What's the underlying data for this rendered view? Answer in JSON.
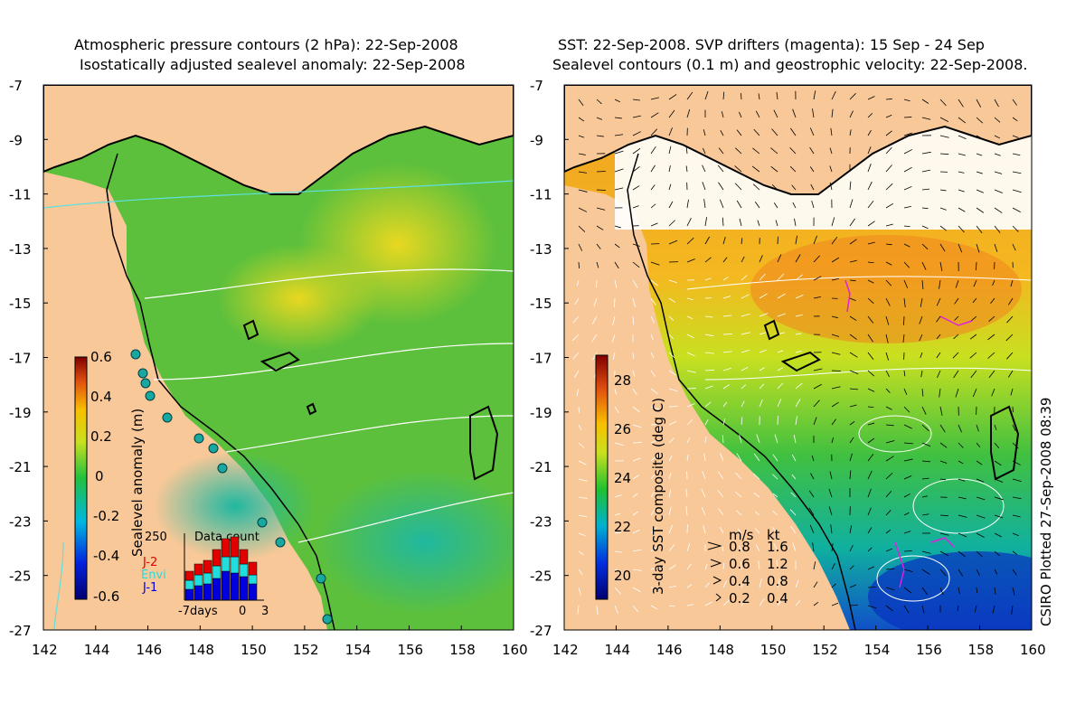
{
  "left_panel": {
    "title_line1": "Atmospheric pressure contours (2 hPa): 22-Sep-2008",
    "title_line2": "Isostatically adjusted sealevel anomaly: 22-Sep-2008",
    "colorbar": {
      "label": "Sealevel anomaly (m)",
      "ticks": [
        "0.6",
        "0.4",
        "0.2",
        "0",
        "-0.2",
        "-0.4",
        "-0.6"
      ]
    },
    "data_count": {
      "title": "Data count",
      "y_max": "250",
      "missions": [
        "J-2",
        "Envi",
        "J-1"
      ],
      "mission_colors": [
        "#e00000",
        "#22dddd",
        "#0000dd"
      ],
      "x_label": "-7days",
      "x_ticks": [
        "0",
        "3"
      ]
    }
  },
  "right_panel": {
    "title_line1": "SST: 22-Sep-2008. SVP drifters (magenta): 15 Sep - 24 Sep",
    "title_line2": "Sealevel contours (0.1 m) and geostrophic velocity: 22-Sep-2008.",
    "colorbar": {
      "label": "3-day SST composite (deg C)",
      "ticks": [
        "28",
        "26",
        "24",
        "22",
        "20"
      ]
    },
    "velocity_legend": {
      "header_ms": "m/s",
      "header_kt": "kt",
      "rows": [
        {
          "ms": "0.8",
          "kt": "1.6"
        },
        {
          "ms": "0.6",
          "kt": "1.2"
        },
        {
          "ms": "0.4",
          "kt": "0.8"
        },
        {
          "ms": "0.2",
          "kt": "0.4"
        }
      ]
    }
  },
  "map_axes": {
    "lat_ticks": [
      "-7",
      "-9",
      "-11",
      "-13",
      "-15",
      "-17",
      "-19",
      "-21",
      "-23",
      "-25",
      "-27"
    ],
    "lon_ticks": [
      "142",
      "144",
      "146",
      "148",
      "150",
      "152",
      "154",
      "156",
      "158",
      "160"
    ]
  },
  "credit": "CSIRO Plotted 27-Sep-2008 08:39",
  "colors": {
    "land": "#f8c898",
    "coast": "#000000",
    "sla_mid": "#44bb44",
    "sst_warm": "#f0a020"
  }
}
